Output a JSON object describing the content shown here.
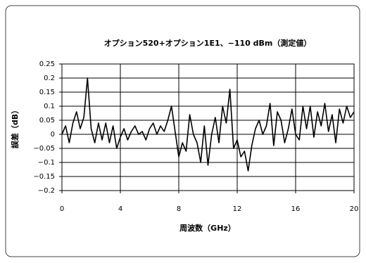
{
  "chart_data": {
    "type": "line",
    "title": "オプション520+オプション1E1、−110 dBm（測定値）",
    "x_label": "周波数（GHz）",
    "y_label": "誤差（dB）",
    "x": [
      0,
      0.25,
      0.5,
      0.75,
      1,
      1.25,
      1.5,
      1.75,
      2,
      2.25,
      2.5,
      2.75,
      3,
      3.25,
      3.5,
      3.75,
      4,
      4.25,
      4.5,
      4.75,
      5,
      5.25,
      5.5,
      5.75,
      6,
      6.25,
      6.5,
      6.75,
      7,
      7.25,
      7.5,
      7.75,
      8,
      8.25,
      8.5,
      8.75,
      9,
      9.25,
      9.5,
      9.75,
      10,
      10.25,
      10.5,
      10.75,
      11,
      11.25,
      11.5,
      11.75,
      12,
      12.25,
      12.5,
      12.75,
      13,
      13.25,
      13.5,
      13.75,
      14,
      14.25,
      14.5,
      14.75,
      15,
      15.25,
      15.5,
      15.75,
      16,
      16.25,
      16.5,
      16.75,
      17,
      17.25,
      17.5,
      17.75,
      18,
      18.25,
      18.5,
      18.75,
      19,
      19.25,
      19.5,
      19.75,
      20
    ],
    "values": [
      0,
      0.03,
      -0.03,
      0.04,
      0.08,
      0.02,
      0.06,
      0.2,
      0.02,
      -0.03,
      0.04,
      -0.02,
      0.04,
      -0.03,
      0.03,
      -0.05,
      -0.01,
      0.02,
      -0.02,
      0.01,
      0.03,
      0,
      0.01,
      -0.02,
      0.02,
      0.04,
      0,
      0.03,
      0.01,
      0.05,
      0.1,
      0.01,
      -0.08,
      -0.03,
      -0.06,
      0.07,
      0,
      -0.03,
      -0.1,
      0.03,
      -0.11,
      0,
      0.06,
      -0.03,
      0.1,
      0.04,
      0.16,
      -0.05,
      -0.02,
      -0.08,
      -0.06,
      -0.13,
      -0.04,
      0.02,
      0.05,
      0,
      0.03,
      0.11,
      -0.04,
      0.08,
      0.05,
      -0.03,
      0.02,
      0.09,
      0,
      -0.02,
      0.1,
      0.02,
      0.1,
      -0.01,
      0.08,
      0.03,
      0.11,
      0.01,
      0.07,
      -0.03,
      0.09,
      0.04,
      0.1,
      0.06,
      0.08
    ],
    "color": "#000000",
    "xlim": [
      0,
      20
    ],
    "xticks": [
      0,
      4,
      8,
      12,
      16,
      20
    ],
    "ylim": [
      -0.2,
      0.25
    ],
    "yticks": [
      {
        "value": -0.2,
        "label": "−0.2"
      },
      {
        "value": -0.15,
        "label": "−0.15"
      },
      {
        "value": -0.1,
        "label": "−0.1"
      },
      {
        "value": -0.05,
        "label": "−0.05"
      },
      0,
      0.05,
      0.1,
      0.15,
      0.2,
      0.25
    ],
    "grid": true
  }
}
